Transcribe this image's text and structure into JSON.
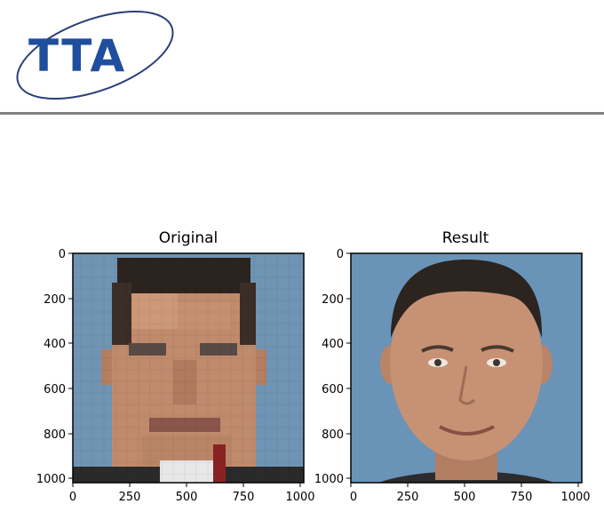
{
  "logo": {
    "text": "TTA",
    "brand_color": "#1f4e9d",
    "ring_color": "#2a3f78"
  },
  "divider_color": "#7f7f7f",
  "panels": [
    {
      "title": "Original",
      "image": "pixelated-face",
      "x_ticks": [
        "0",
        "250",
        "500",
        "750",
        "1000"
      ],
      "y_ticks": [
        "0",
        "200",
        "400",
        "600",
        "800",
        "1000"
      ]
    },
    {
      "title": "Result",
      "image": "reconstructed-face",
      "x_ticks": [
        "0",
        "250",
        "500",
        "750",
        "1000"
      ],
      "y_ticks": [
        "0",
        "200",
        "400",
        "600",
        "800",
        "1000"
      ]
    }
  ],
  "colors": {
    "background_blue": "#6f94b4",
    "skin": "#c08a6c",
    "hair": "#2b231e"
  }
}
